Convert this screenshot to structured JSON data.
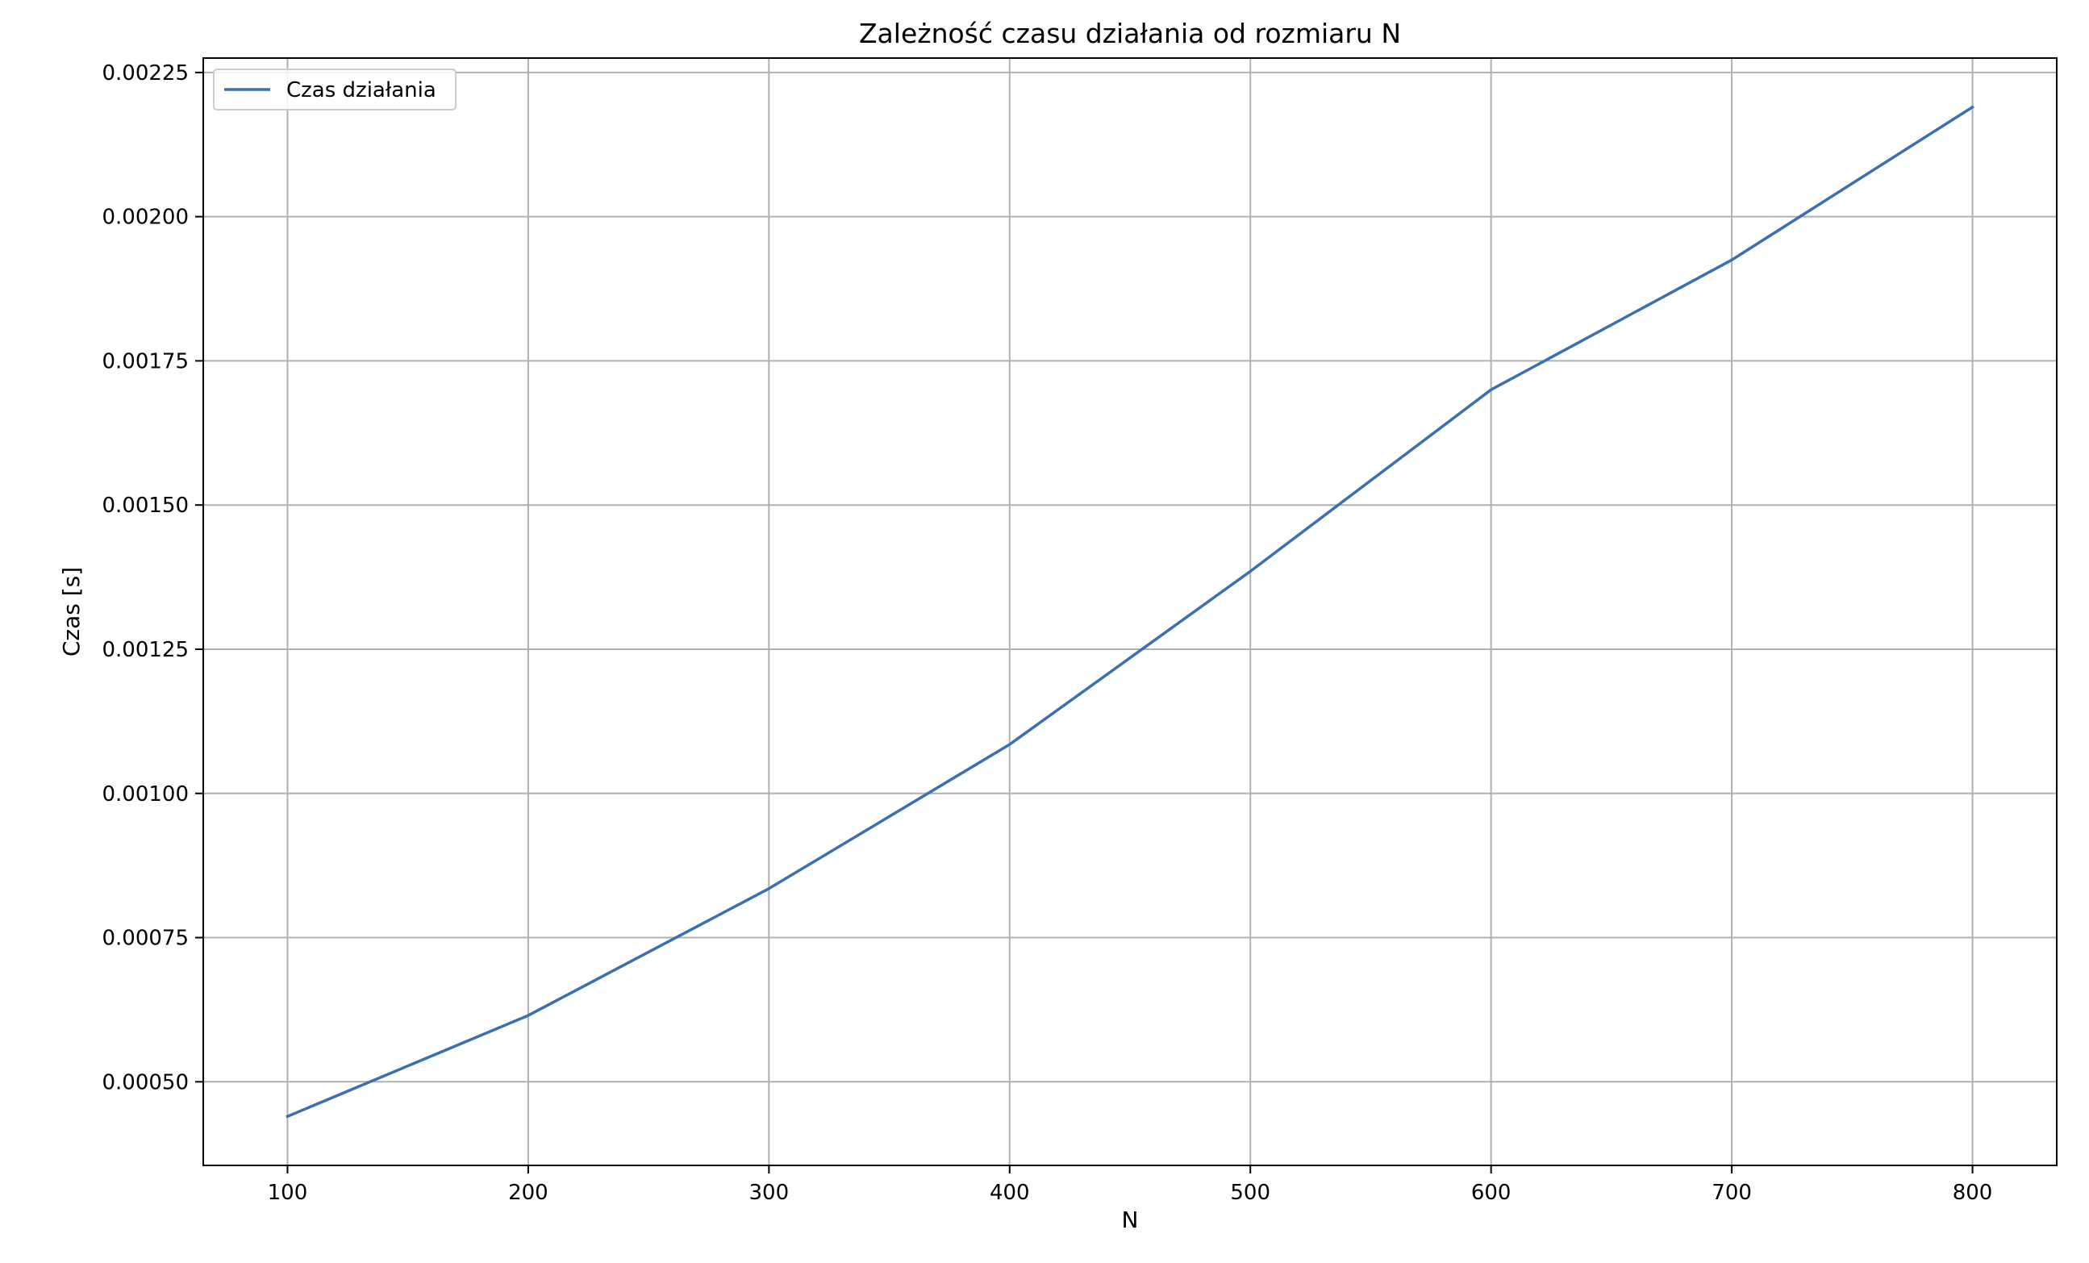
{
  "chart_data": {
    "type": "line",
    "title": "Zależność czasu działania od rozmiaru N",
    "xlabel": "N",
    "ylabel": "Czas [s]",
    "x": [
      100,
      200,
      300,
      400,
      500,
      600,
      700,
      800
    ],
    "series": [
      {
        "name": "Czas działania",
        "color": "#3a6fb0",
        "values": [
          0.00044,
          0.000615,
          0.000835,
          0.001085,
          0.001385,
          0.0017,
          0.001925,
          0.00219
        ]
      }
    ],
    "xlim": [
      65,
      835
    ],
    "ylim": [
      0.000355,
      0.002275
    ],
    "xticks": [
      100,
      200,
      300,
      400,
      500,
      600,
      700,
      800
    ],
    "xtick_labels": [
      "100",
      "200",
      "300",
      "400",
      "500",
      "600",
      "700",
      "800"
    ],
    "yticks": [
      0.0005,
      0.00075,
      0.001,
      0.00125,
      0.0015,
      0.00175,
      0.002,
      0.00225
    ],
    "ytick_labels": [
      "0.00050",
      "0.00075",
      "0.00100",
      "0.00125",
      "0.00150",
      "0.00175",
      "0.00200",
      "0.00225"
    ],
    "grid": true,
    "legend_position": "top-left"
  }
}
